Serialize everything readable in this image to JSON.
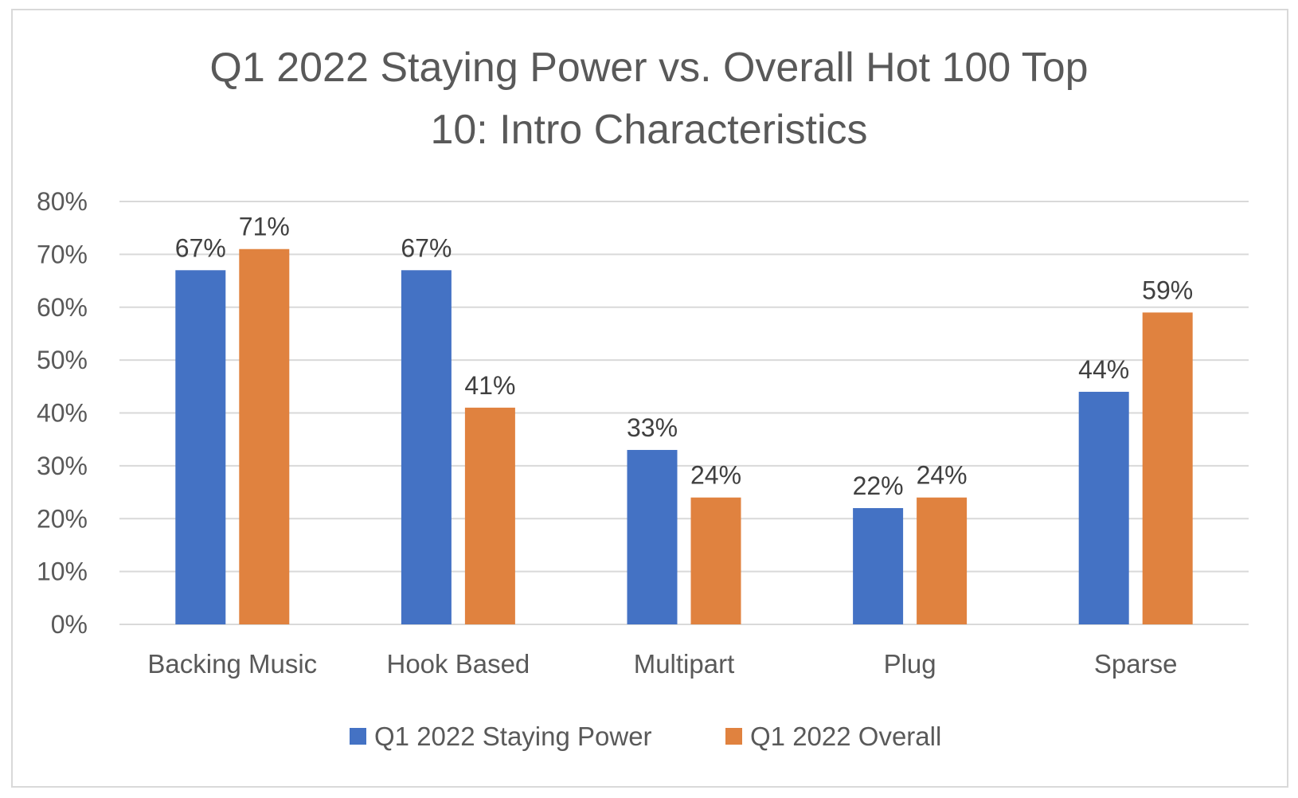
{
  "chart_data": {
    "type": "bar",
    "title_lines": [
      "Q1 2022 Staying Power vs. Overall Hot 100 Top",
      "10: Intro Characteristics"
    ],
    "categories": [
      "Backing Music",
      "Hook Based",
      "Multipart",
      "Plug",
      "Sparse"
    ],
    "series": [
      {
        "name": "Q1 2022 Staying Power",
        "color": "#4472c4",
        "values": [
          67,
          67,
          33,
          22,
          44
        ],
        "labels": [
          "67%",
          "67%",
          "33%",
          "22%",
          "44%"
        ]
      },
      {
        "name": "Q1 2022 Overall",
        "color": "#e0823f",
        "values": [
          71,
          41,
          24,
          24,
          59
        ],
        "labels": [
          "71%",
          "41%",
          "24%",
          "24%",
          "59%"
        ]
      }
    ],
    "ylim": [
      0,
      80
    ],
    "yticks": [
      0,
      10,
      20,
      30,
      40,
      50,
      60,
      70,
      80
    ],
    "ytick_labels": [
      "0%",
      "10%",
      "20%",
      "30%",
      "40%",
      "50%",
      "60%",
      "70%",
      "80%"
    ],
    "grid": true,
    "legend_position": "bottom",
    "xlabel": "",
    "ylabel": ""
  }
}
